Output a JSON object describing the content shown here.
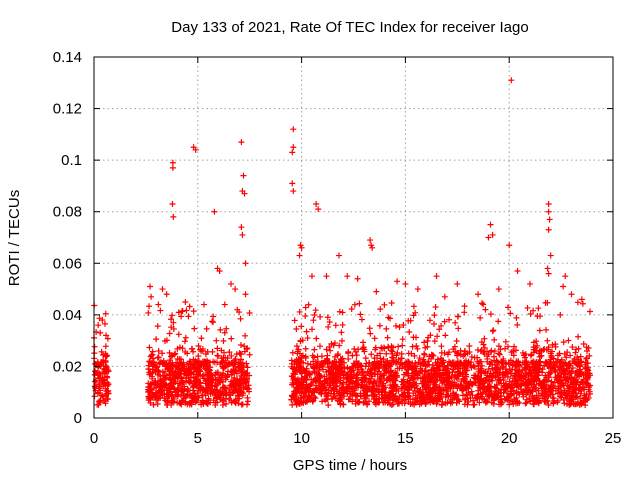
{
  "chart_data": {
    "type": "scatter",
    "title": "Day 133 of 2021, Rate Of TEC Index for receiver Iago",
    "xlabel": "GPS time / hours",
    "ylabel": "ROTI / TECUs",
    "xlim": [
      0,
      25
    ],
    "ylim": [
      0,
      0.14
    ],
    "xticks": [
      "0",
      "5",
      "10",
      "15",
      "20",
      "25"
    ],
    "yticks": [
      "0",
      "0.02",
      "0.04",
      "0.06",
      "0.08",
      "0.1",
      "0.12",
      "0.14"
    ],
    "grid": true,
    "marker": "plus",
    "color": "#ff0000",
    "segments": [
      [
        0,
        0.7
      ],
      [
        2.6,
        7.5
      ],
      [
        9.5,
        23.9
      ]
    ],
    "highlights": [
      {
        "x": 0.2,
        "y": 0.036
      },
      {
        "x": 0.3,
        "y": 0.033
      },
      {
        "x": 0.4,
        "y": 0.038
      },
      {
        "x": 2.7,
        "y": 0.051
      },
      {
        "x": 2.75,
        "y": 0.047
      },
      {
        "x": 3.1,
        "y": 0.044
      },
      {
        "x": 3.3,
        "y": 0.05
      },
      {
        "x": 3.5,
        "y": 0.048
      },
      {
        "x": 3.8,
        "y": 0.099
      },
      {
        "x": 3.8,
        "y": 0.097
      },
      {
        "x": 3.78,
        "y": 0.083
      },
      {
        "x": 3.82,
        "y": 0.078
      },
      {
        "x": 4.4,
        "y": 0.045
      },
      {
        "x": 4.8,
        "y": 0.105
      },
      {
        "x": 4.9,
        "y": 0.104
      },
      {
        "x": 5.3,
        "y": 0.044
      },
      {
        "x": 5.8,
        "y": 0.08
      },
      {
        "x": 5.95,
        "y": 0.058
      },
      {
        "x": 6.05,
        "y": 0.057
      },
      {
        "x": 6.3,
        "y": 0.044
      },
      {
        "x": 6.6,
        "y": 0.052
      },
      {
        "x": 6.8,
        "y": 0.05
      },
      {
        "x": 6.9,
        "y": 0.042
      },
      {
        "x": 7.1,
        "y": 0.107
      },
      {
        "x": 7.2,
        "y": 0.094
      },
      {
        "x": 7.15,
        "y": 0.088
      },
      {
        "x": 7.25,
        "y": 0.087
      },
      {
        "x": 7.1,
        "y": 0.074
      },
      {
        "x": 7.15,
        "y": 0.071
      },
      {
        "x": 7.3,
        "y": 0.06
      },
      {
        "x": 7.3,
        "y": 0.048
      },
      {
        "x": 9.6,
        "y": 0.112
      },
      {
        "x": 9.6,
        "y": 0.105
      },
      {
        "x": 9.55,
        "y": 0.103
      },
      {
        "x": 9.55,
        "y": 0.091
      },
      {
        "x": 9.6,
        "y": 0.088
      },
      {
        "x": 9.95,
        "y": 0.067
      },
      {
        "x": 10.0,
        "y": 0.066
      },
      {
        "x": 9.9,
        "y": 0.063
      },
      {
        "x": 10.7,
        "y": 0.083
      },
      {
        "x": 10.8,
        "y": 0.081
      },
      {
        "x": 10.5,
        "y": 0.055
      },
      {
        "x": 11.2,
        "y": 0.055
      },
      {
        "x": 11.8,
        "y": 0.063
      },
      {
        "x": 12.2,
        "y": 0.055
      },
      {
        "x": 12.7,
        "y": 0.054
      },
      {
        "x": 13.3,
        "y": 0.069
      },
      {
        "x": 13.35,
        "y": 0.067
      },
      {
        "x": 13.4,
        "y": 0.066
      },
      {
        "x": 13.6,
        "y": 0.049
      },
      {
        "x": 14.6,
        "y": 0.053
      },
      {
        "x": 15.0,
        "y": 0.052
      },
      {
        "x": 15.6,
        "y": 0.05
      },
      {
        "x": 16.5,
        "y": 0.055
      },
      {
        "x": 16.9,
        "y": 0.047
      },
      {
        "x": 17.5,
        "y": 0.052
      },
      {
        "x": 18.5,
        "y": 0.048
      },
      {
        "x": 19.1,
        "y": 0.075
      },
      {
        "x": 19.2,
        "y": 0.071
      },
      {
        "x": 19.0,
        "y": 0.07
      },
      {
        "x": 19.5,
        "y": 0.05
      },
      {
        "x": 20.0,
        "y": 0.067
      },
      {
        "x": 20.1,
        "y": 0.131
      },
      {
        "x": 20.4,
        "y": 0.057
      },
      {
        "x": 21.0,
        "y": 0.052
      },
      {
        "x": 21.9,
        "y": 0.083
      },
      {
        "x": 21.9,
        "y": 0.08
      },
      {
        "x": 21.95,
        "y": 0.077
      },
      {
        "x": 21.9,
        "y": 0.073
      },
      {
        "x": 22.0,
        "y": 0.063
      },
      {
        "x": 21.85,
        "y": 0.058
      },
      {
        "x": 21.9,
        "y": 0.056
      },
      {
        "x": 22.6,
        "y": 0.051
      },
      {
        "x": 22.7,
        "y": 0.055
      },
      {
        "x": 23.0,
        "y": 0.048
      },
      {
        "x": 23.5,
        "y": 0.046
      }
    ]
  }
}
